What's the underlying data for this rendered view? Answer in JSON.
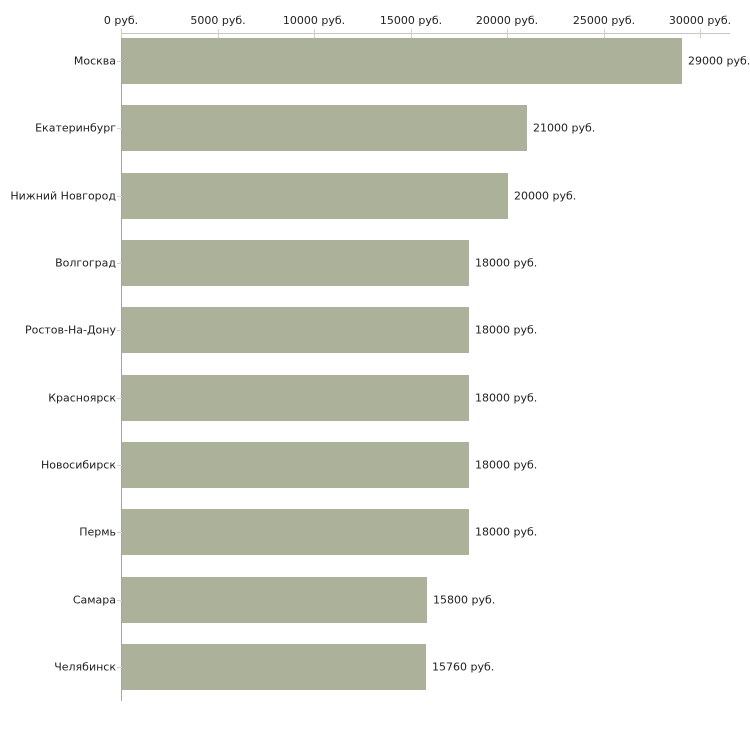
{
  "chart_data": {
    "type": "bar",
    "orientation": "horizontal",
    "title": "",
    "xlabel": "",
    "ylabel": "",
    "grid": false,
    "legend": false,
    "categories": [
      "Москва",
      "Екатеринбург",
      "Нижний Новгород",
      "Волгоград",
      "Ростов-На-Дону",
      "Красноярск",
      "Новосибирск",
      "Пермь",
      "Самара",
      "Челябинск"
    ],
    "values": [
      29000,
      21000,
      20000,
      18000,
      18000,
      18000,
      18000,
      18000,
      15800,
      15760
    ],
    "value_labels": [
      "29000 руб.",
      "21000 руб.",
      "20000 руб.",
      "18000 руб.",
      "18000 руб.",
      "18000 руб.",
      "18000 руб.",
      "18000 руб.",
      "15800 руб.",
      "15760 руб."
    ],
    "x_axis": {
      "position": "top",
      "range": [
        0,
        30000
      ],
      "ticks": [
        0,
        5000,
        10000,
        15000,
        20000,
        25000,
        30000
      ],
      "tick_labels": [
        "0 руб.",
        "5000 руб.",
        "10000 руб.",
        "15000 руб.",
        "20000 руб.",
        "25000 руб.",
        "30000 руб."
      ]
    },
    "colors": {
      "bar": "#acb29a",
      "x_axis_line": "#c6c6c6",
      "y_axis_line": "#a5a5a5",
      "x_tick": "#d8d4ae",
      "category_tick": "#d8d0b8",
      "text": "#222222",
      "background": "#ffffff"
    }
  }
}
